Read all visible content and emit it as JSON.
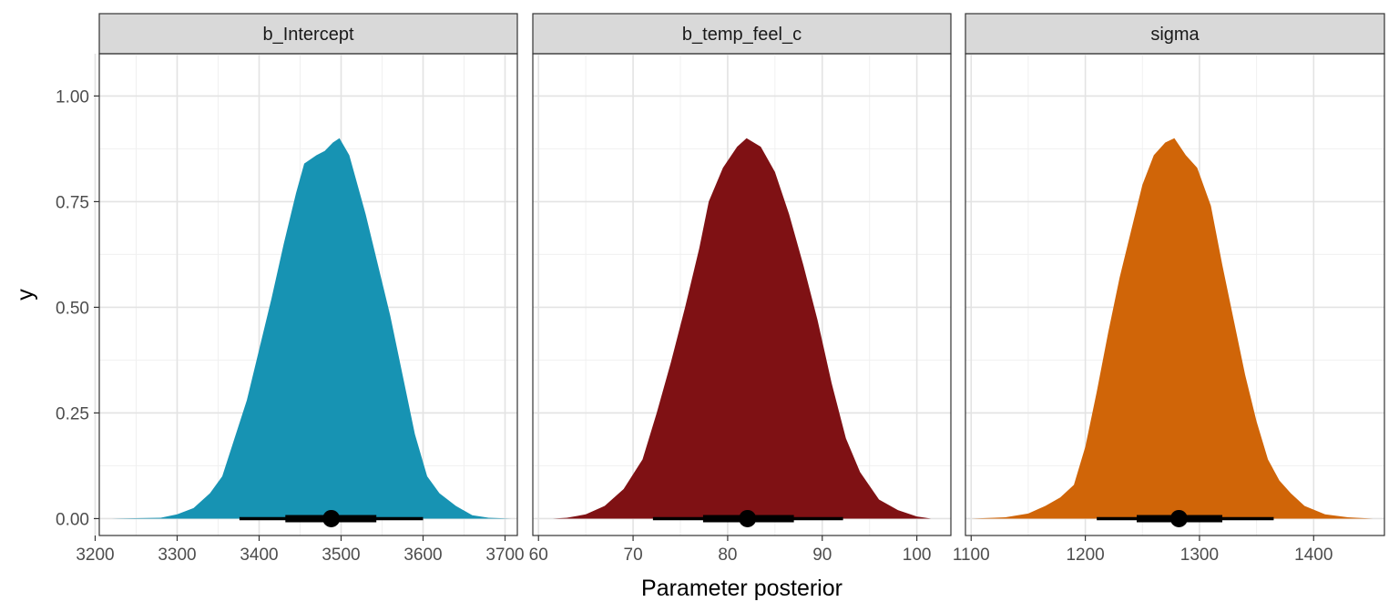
{
  "chart_data": {
    "type": "area",
    "ylabel": "y",
    "xlabel": "Parameter posterior",
    "ylim": [
      -0.04,
      1.1
    ],
    "y_ticks": [
      0,
      0.25,
      0.5,
      0.75,
      1
    ],
    "y_tick_labels": [
      "0.00",
      "0.25",
      "0.50",
      "0.75",
      "1.00"
    ],
    "grid": true,
    "facets": [
      {
        "name": "b_Intercept",
        "color": "#1793b3",
        "xlim": [
          3205,
          3715
        ],
        "x_ticks": [
          3200,
          3300,
          3400,
          3500,
          3600,
          3700
        ],
        "x_tick_labels": [
          "3200",
          "3300",
          "3400",
          "3500",
          "3600",
          "3700"
        ],
        "density": [
          [
            3220,
            0
          ],
          [
            3280,
            0.002
          ],
          [
            3300,
            0.01
          ],
          [
            3320,
            0.025
          ],
          [
            3340,
            0.06
          ],
          [
            3355,
            0.1
          ],
          [
            3370,
            0.19
          ],
          [
            3385,
            0.28
          ],
          [
            3400,
            0.4
          ],
          [
            3415,
            0.52
          ],
          [
            3430,
            0.65
          ],
          [
            3445,
            0.77
          ],
          [
            3455,
            0.84
          ],
          [
            3470,
            0.86
          ],
          [
            3480,
            0.87
          ],
          [
            3490,
            0.89
          ],
          [
            3498,
            0.9
          ],
          [
            3510,
            0.86
          ],
          [
            3520,
            0.79
          ],
          [
            3530,
            0.72
          ],
          [
            3545,
            0.6
          ],
          [
            3560,
            0.48
          ],
          [
            3575,
            0.34
          ],
          [
            3590,
            0.2
          ],
          [
            3605,
            0.1
          ],
          [
            3620,
            0.06
          ],
          [
            3640,
            0.03
          ],
          [
            3660,
            0.008
          ],
          [
            3680,
            0.002
          ],
          [
            3708,
            0
          ]
        ],
        "point": 3488,
        "interval_66": [
          3432,
          3543
        ],
        "interval_95": [
          3376,
          3600
        ]
      },
      {
        "name": "b_temp_feel_c",
        "color": "#7f1114",
        "xlim": [
          59.4,
          103.6
        ],
        "x_ticks": [
          60,
          70,
          80,
          90,
          100
        ],
        "x_tick_labels": [
          "60",
          "70",
          "80",
          "90",
          "100"
        ],
        "density": [
          [
            61.5,
            0
          ],
          [
            63,
            0.002
          ],
          [
            65,
            0.01
          ],
          [
            67,
            0.03
          ],
          [
            69,
            0.07
          ],
          [
            71,
            0.14
          ],
          [
            72.5,
            0.25
          ],
          [
            74,
            0.37
          ],
          [
            75.5,
            0.5
          ],
          [
            77,
            0.64
          ],
          [
            78,
            0.75
          ],
          [
            79.5,
            0.83
          ],
          [
            81,
            0.88
          ],
          [
            82,
            0.9
          ],
          [
            83.5,
            0.88
          ],
          [
            85,
            0.82
          ],
          [
            86.5,
            0.72
          ],
          [
            88,
            0.6
          ],
          [
            89.5,
            0.47
          ],
          [
            91,
            0.32
          ],
          [
            92.5,
            0.19
          ],
          [
            94,
            0.11
          ],
          [
            96,
            0.045
          ],
          [
            98,
            0.02
          ],
          [
            100,
            0.005
          ],
          [
            101.5,
            0
          ]
        ],
        "point": 82.1,
        "interval_66": [
          77.4,
          87.0
        ],
        "interval_95": [
          72.1,
          92.2
        ]
      },
      {
        "name": "sigma",
        "color": "#d06508",
        "xlim": [
          1095,
          1462
        ],
        "x_ticks": [
          1100,
          1200,
          1300,
          1400
        ],
        "x_tick_labels": [
          "1100",
          "1200",
          "1300",
          "1400"
        ],
        "density": [
          [
            1100,
            0
          ],
          [
            1130,
            0.003
          ],
          [
            1150,
            0.012
          ],
          [
            1165,
            0.03
          ],
          [
            1178,
            0.05
          ],
          [
            1190,
            0.08
          ],
          [
            1200,
            0.17
          ],
          [
            1210,
            0.3
          ],
          [
            1220,
            0.44
          ],
          [
            1230,
            0.57
          ],
          [
            1240,
            0.68
          ],
          [
            1250,
            0.79
          ],
          [
            1260,
            0.86
          ],
          [
            1270,
            0.89
          ],
          [
            1278,
            0.9
          ],
          [
            1288,
            0.86
          ],
          [
            1298,
            0.83
          ],
          [
            1310,
            0.74
          ],
          [
            1320,
            0.6
          ],
          [
            1330,
            0.47
          ],
          [
            1340,
            0.34
          ],
          [
            1350,
            0.23
          ],
          [
            1360,
            0.14
          ],
          [
            1370,
            0.09
          ],
          [
            1380,
            0.06
          ],
          [
            1392,
            0.03
          ],
          [
            1410,
            0.01
          ],
          [
            1430,
            0.003
          ],
          [
            1452,
            0
          ]
        ],
        "point": 1282,
        "interval_66": [
          1245,
          1320
        ],
        "interval_95": [
          1210,
          1365
        ]
      }
    ]
  }
}
